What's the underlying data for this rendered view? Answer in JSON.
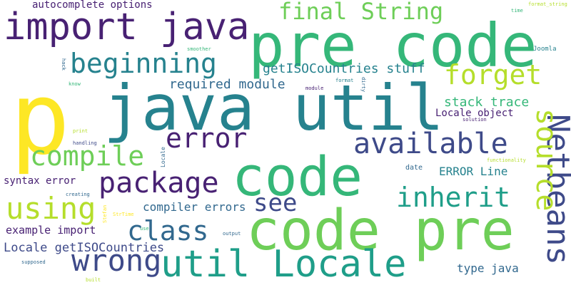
{
  "palette": {
    "dark_purple": "#482173",
    "indigo": "#3e4a89",
    "blue": "#31688e",
    "teal": "#26828e",
    "green_teal": "#1f9e89",
    "green": "#35b779",
    "light_green": "#6ece58",
    "lime": "#b5de2b",
    "yellow": "#fde725"
  },
  "words": [
    {
      "text": "p"
    },
    {
      "text": "pre code"
    },
    {
      "text": "java util"
    },
    {
      "text": "code"
    },
    {
      "text": "code pre"
    },
    {
      "text": "import java"
    },
    {
      "text": "util Locale"
    },
    {
      "text": "Netbeans"
    },
    {
      "text": "final String"
    },
    {
      "text": "beginning"
    },
    {
      "text": "forget"
    },
    {
      "text": "error"
    },
    {
      "text": "available"
    },
    {
      "text": "compile"
    },
    {
      "text": "package"
    },
    {
      "text": "source"
    },
    {
      "text": "inherit"
    },
    {
      "text": "using"
    },
    {
      "text": "see"
    },
    {
      "text": "class"
    },
    {
      "text": "wrong"
    },
    {
      "text": "autocomplete options"
    },
    {
      "text": "getISOCountries stuff"
    },
    {
      "text": "required module"
    },
    {
      "text": "stack trace"
    },
    {
      "text": "Locale object"
    },
    {
      "text": "ERROR Line"
    },
    {
      "text": "syntax error"
    },
    {
      "text": "compiler errors"
    },
    {
      "text": "example import"
    },
    {
      "text": "Locale getISOCountries"
    },
    {
      "text": "type java"
    },
    {
      "text": "date"
    },
    {
      "text": "format_string"
    },
    {
      "text": "time"
    },
    {
      "text": "Joomla"
    },
    {
      "text": "smoother"
    },
    {
      "text": "hack"
    },
    {
      "text": "know"
    },
    {
      "text": "module"
    },
    {
      "text": "format"
    },
    {
      "text": "dirty"
    },
    {
      "text": "solution"
    },
    {
      "text": "print"
    },
    {
      "text": "handling"
    },
    {
      "text": "Locale"
    },
    {
      "text": "functionality"
    },
    {
      "text": "creating"
    },
    {
      "text": "Stefan"
    },
    {
      "text": "StrTime"
    },
    {
      "text": "use"
    },
    {
      "text": "output"
    },
    {
      "text": "supposed"
    },
    {
      "text": "built"
    }
  ]
}
